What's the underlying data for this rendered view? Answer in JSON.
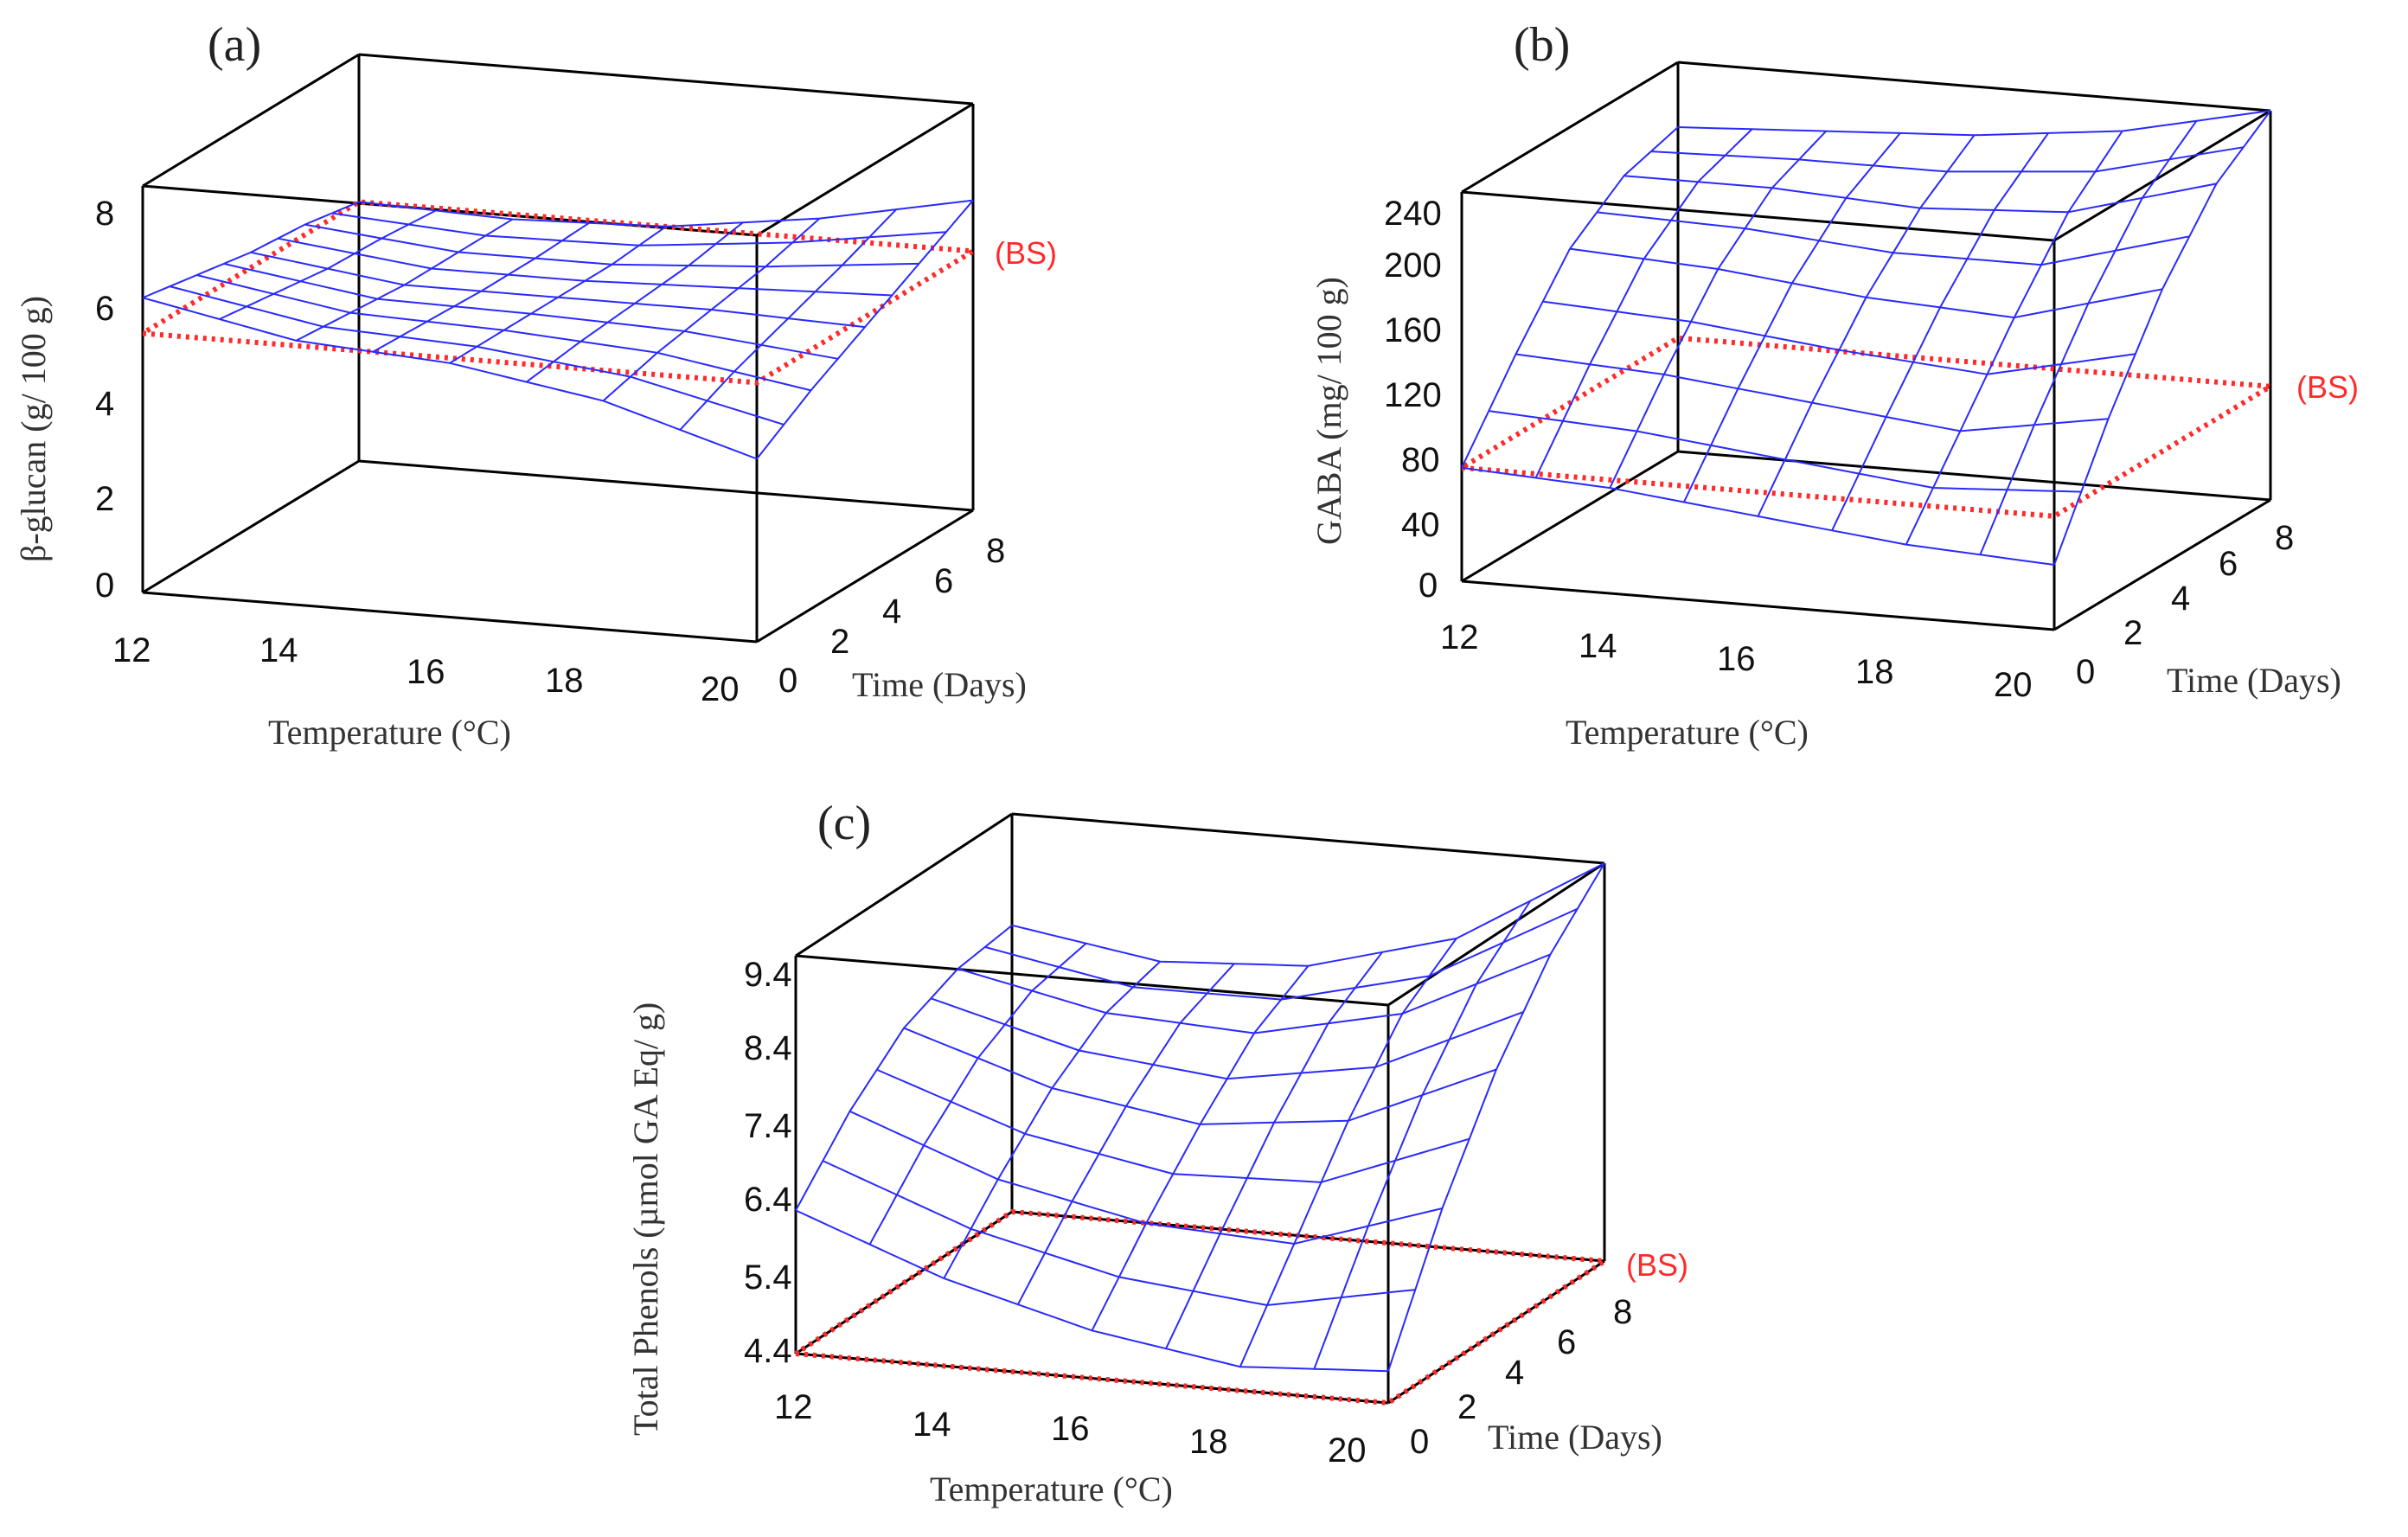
{
  "figure": {
    "panels": [
      {
        "label": "(a)",
        "zlabel": "β-glucan (g/ 100 g)",
        "xlabel": "Temperature (°C)",
        "ylabel": "Time (Days)",
        "bs_label": "(BS)",
        "xticks": [
          "12",
          "14",
          "16",
          "18",
          "20"
        ],
        "yticks": [
          "0",
          "2",
          "4",
          "6",
          "8"
        ],
        "zticks": [
          "0",
          "2",
          "4",
          "6",
          "8"
        ]
      },
      {
        "label": "(b)",
        "zlabel": "GABA (mg/ 100 g)",
        "xlabel": "Temperature (°C)",
        "ylabel": "Time (Days)",
        "bs_label": "(BS)",
        "xticks": [
          "12",
          "14",
          "16",
          "18",
          "20"
        ],
        "yticks": [
          "0",
          "2",
          "4",
          "6",
          "8"
        ],
        "zticks": [
          "0",
          "40",
          "80",
          "120",
          "160",
          "200",
          "240"
        ]
      },
      {
        "label": "(c)",
        "zlabel": "Total Phenols (µmol GA Eq/ g)",
        "xlabel": "Temperature (°C)",
        "ylabel": "Time (Days)",
        "bs_label": "(BS)",
        "xticks": [
          "12",
          "14",
          "16",
          "18",
          "20"
        ],
        "yticks": [
          "0",
          "2",
          "4",
          "6",
          "8"
        ],
        "zticks": [
          "4.4",
          "5.4",
          "6.4",
          "7.4",
          "8.4",
          "9.4"
        ]
      }
    ]
  },
  "chart_data": [
    {
      "type": "surface",
      "title": "(a)",
      "xlabel": "Temperature (°C)",
      "ylabel": "Time (Days)",
      "zlabel": "β-glucan (g/ 100 g)",
      "xlim": [
        12,
        20
      ],
      "ylim": [
        0,
        8
      ],
      "zlim": [
        0,
        8
      ],
      "x": [
        12,
        14,
        16,
        18,
        20
      ],
      "y": [
        0,
        2,
        4,
        6,
        8
      ],
      "z": [
        [
          5.8,
          5.2,
          5.0,
          4.5,
          3.6
        ],
        [
          5.6,
          5.1,
          5.0,
          4.8,
          4.3
        ],
        [
          5.4,
          5.0,
          5.0,
          5.0,
          4.9
        ],
        [
          5.3,
          5.0,
          5.0,
          5.2,
          5.5
        ],
        [
          5.1,
          5.0,
          5.1,
          5.5,
          6.1
        ]
      ],
      "reference_plane": {
        "name": "(BS)",
        "z": 5.1
      },
      "colors": {
        "surface": "#2a2aff",
        "reference": "#ff2a2a"
      }
    },
    {
      "type": "surface",
      "title": "(b)",
      "xlabel": "Temperature (°C)",
      "ylabel": "Time (Days)",
      "zlabel": "GABA (mg/ 100 g)",
      "xlim": [
        12,
        20
      ],
      "ylim": [
        0,
        8
      ],
      "zlim": [
        0,
        240
      ],
      "x": [
        12,
        14,
        16,
        18,
        20
      ],
      "y": [
        0,
        2,
        4,
        6,
        8
      ],
      "z": [
        [
          70,
          65,
          55,
          45,
          40
        ],
        [
          120,
          115,
          105,
          95,
          110
        ],
        [
          165,
          160,
          150,
          145,
          170
        ],
        [
          190,
          190,
          185,
          190,
          215
        ],
        [
          200,
          205,
          210,
          220,
          240
        ]
      ],
      "reference_plane": {
        "name": "(BS)",
        "z": 70
      },
      "colors": {
        "surface": "#2a2aff",
        "reference": "#ff2a2a"
      }
    },
    {
      "type": "surface",
      "title": "(c)",
      "xlabel": "Temperature (°C)",
      "ylabel": "Time (Days)",
      "zlabel": "Total Phenols (µmol GA Eq/ g)",
      "xlim": [
        12,
        20
      ],
      "ylim": [
        0,
        8
      ],
      "zlim": [
        4.4,
        9.4
      ],
      "x": [
        12,
        14,
        16,
        18,
        20
      ],
      "y": [
        0,
        2,
        4,
        6,
        8
      ],
      "z": [
        [
          6.2,
          5.5,
          5.0,
          4.7,
          4.8
        ],
        [
          7.0,
          6.3,
          5.9,
          5.8,
          6.4
        ],
        [
          7.6,
          7.0,
          6.7,
          6.9,
          7.7
        ],
        [
          7.9,
          7.5,
          7.4,
          7.8,
          8.7
        ],
        [
          8.0,
          7.7,
          7.8,
          8.3,
          9.4
        ]
      ],
      "reference_plane": {
        "name": "(BS)",
        "z": 4.4
      },
      "colors": {
        "surface": "#2a2aff",
        "reference": "#ff2a2a"
      }
    }
  ]
}
